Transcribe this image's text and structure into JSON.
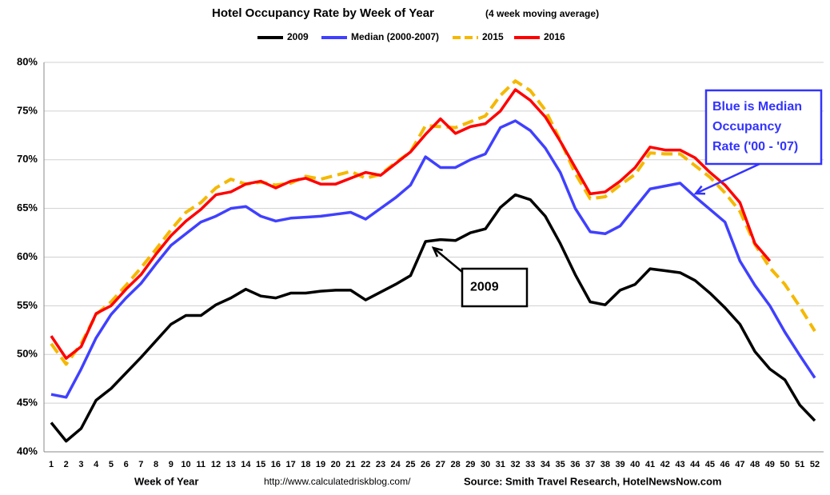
{
  "chart_data": {
    "type": "line",
    "title": "Hotel Occupancy Rate by  Week of Year",
    "subtitle": "(4 week moving average)",
    "x_label": "Week of Year",
    "url": "http://www.calculatedriskblog.com/",
    "source": "Source: Smith Travel Research, HotelNewsNow.com",
    "annotations": [
      {
        "lines": [
          "2009"
        ],
        "color": "#000000"
      },
      {
        "lines": [
          "Blue is Median",
          "Occupancy",
          "Rate ('00 - '07)"
        ],
        "color": "#3333ff"
      }
    ],
    "categories": [
      "1",
      "2",
      "3",
      "4",
      "5",
      "6",
      "7",
      "8",
      "9",
      "10",
      "11",
      "12",
      "13",
      "14",
      "15",
      "16",
      "17",
      "18",
      "19",
      "20",
      "21",
      "22",
      "23",
      "24",
      "25",
      "26",
      "27",
      "28",
      "29",
      "30",
      "31",
      "32",
      "33",
      "34",
      "35",
      "36",
      "37",
      "38",
      "39",
      "40",
      "41",
      "42",
      "43",
      "44",
      "45",
      "46",
      "47",
      "48",
      "49",
      "50",
      "51",
      "52"
    ],
    "ylim": [
      40,
      80
    ],
    "yticks": [
      {
        "value": 40,
        "label": "40%"
      },
      {
        "value": 45,
        "label": "45%"
      },
      {
        "value": 50,
        "label": "50%"
      },
      {
        "value": 55,
        "label": "55%"
      },
      {
        "value": 60,
        "label": "60%"
      },
      {
        "value": 65,
        "label": "65%"
      },
      {
        "value": 70,
        "label": "70%"
      },
      {
        "value": 75,
        "label": "75%"
      },
      {
        "value": 80,
        "label": "80%"
      }
    ],
    "grid": true,
    "legend": "top",
    "series": [
      {
        "name": "2009",
        "color": "#000000",
        "dashed": false,
        "values": [
          43.0,
          41.1,
          42.4,
          45.3,
          46.5,
          48.1,
          49.7,
          51.4,
          53.1,
          54.0,
          54.0,
          55.1,
          55.8,
          56.7,
          56.0,
          55.8,
          56.3,
          56.3,
          56.5,
          56.6,
          56.6,
          55.6,
          56.4,
          57.2,
          58.1,
          61.6,
          61.8,
          61.7,
          62.5,
          62.9,
          65.1,
          66.4,
          65.9,
          64.2,
          61.4,
          58.2,
          55.4,
          55.1,
          56.6,
          57.2,
          58.8,
          58.6,
          58.4,
          57.6,
          56.3,
          54.8,
          53.1,
          50.3,
          48.5,
          47.4,
          44.8,
          43.2
        ]
      },
      {
        "name": "Median (2000-2007)",
        "color": "#4040ff",
        "dashed": false,
        "values": [
          45.9,
          45.6,
          48.5,
          51.7,
          54.1,
          55.8,
          57.3,
          59.3,
          61.2,
          62.4,
          63.6,
          64.2,
          65.0,
          65.2,
          64.2,
          63.7,
          64.0,
          64.1,
          64.2,
          64.4,
          64.6,
          63.9,
          65.0,
          66.1,
          67.4,
          70.3,
          69.2,
          69.2,
          70.0,
          70.6,
          73.3,
          74.0,
          73.0,
          71.2,
          68.7,
          65.0,
          62.6,
          62.4,
          63.2,
          65.1,
          67.0,
          67.3,
          67.6,
          66.2,
          64.9,
          63.6,
          59.6,
          57.1,
          55.0,
          52.3,
          49.9,
          47.6
        ]
      },
      {
        "name": "2015",
        "color": "#f5b800",
        "dashed": true,
        "values": [
          51.1,
          49.0,
          51.1,
          54.1,
          55.4,
          57.1,
          58.9,
          60.8,
          62.8,
          64.6,
          65.6,
          67.1,
          68.0,
          67.5,
          67.7,
          67.4,
          67.6,
          68.3,
          68.0,
          68.4,
          68.8,
          68.1,
          68.5,
          69.7,
          70.8,
          73.5,
          73.4,
          73.3,
          73.9,
          74.5,
          76.6,
          78.1,
          77.1,
          75.1,
          72.0,
          68.6,
          66.0,
          66.2,
          67.4,
          68.5,
          70.7,
          70.6,
          70.6,
          69.4,
          68.2,
          66.6,
          64.7,
          61.3,
          58.9,
          57.2,
          54.9,
          52.4
        ]
      },
      {
        "name": "2016",
        "color": "#ff0000",
        "dashed": false,
        "values": [
          51.9,
          49.6,
          50.8,
          54.2,
          55.0,
          56.7,
          58.2,
          60.3,
          62.2,
          63.7,
          64.9,
          66.4,
          66.7,
          67.5,
          67.8,
          67.1,
          67.8,
          68.1,
          67.5,
          67.5,
          68.1,
          68.7,
          68.4,
          69.6,
          70.8,
          72.6,
          74.2,
          72.7,
          73.4,
          73.7,
          75.0,
          77.2,
          76.1,
          74.4,
          71.9,
          69.2,
          66.5,
          66.7,
          67.8,
          69.2,
          71.3,
          71.0,
          71.0,
          70.2,
          68.7,
          67.4,
          65.6,
          61.4,
          59.6,
          null,
          null,
          null
        ]
      }
    ]
  }
}
